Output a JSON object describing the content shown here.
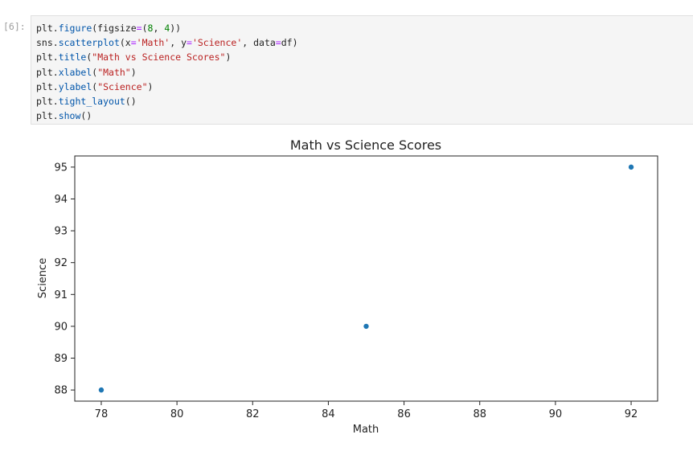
{
  "cell": {
    "prompt": "[6]:",
    "code_lines": [
      [
        {
          "t": "plt.",
          "k": "plain"
        },
        {
          "t": "figure",
          "k": "fn"
        },
        {
          "t": "(figsize",
          "k": "plain"
        },
        {
          "t": "=",
          "k": "op"
        },
        {
          "t": "(",
          "k": "plain"
        },
        {
          "t": "8",
          "k": "num"
        },
        {
          "t": ", ",
          "k": "plain"
        },
        {
          "t": "4",
          "k": "num"
        },
        {
          "t": "))",
          "k": "plain"
        }
      ],
      [
        {
          "t": "sns.",
          "k": "plain"
        },
        {
          "t": "scatterplot",
          "k": "fn"
        },
        {
          "t": "(x",
          "k": "plain"
        },
        {
          "t": "=",
          "k": "op"
        },
        {
          "t": "'Math'",
          "k": "str"
        },
        {
          "t": ", y",
          "k": "plain"
        },
        {
          "t": "=",
          "k": "op"
        },
        {
          "t": "'Science'",
          "k": "str"
        },
        {
          "t": ", data",
          "k": "plain"
        },
        {
          "t": "=",
          "k": "op"
        },
        {
          "t": "df)",
          "k": "plain"
        }
      ],
      [
        {
          "t": "plt.",
          "k": "plain"
        },
        {
          "t": "title",
          "k": "fn"
        },
        {
          "t": "(",
          "k": "plain"
        },
        {
          "t": "\"Math vs Science Scores\"",
          "k": "str"
        },
        {
          "t": ")",
          "k": "plain"
        }
      ],
      [
        {
          "t": "plt.",
          "k": "plain"
        },
        {
          "t": "xlabel",
          "k": "fn"
        },
        {
          "t": "(",
          "k": "plain"
        },
        {
          "t": "\"Math\"",
          "k": "str"
        },
        {
          "t": ")",
          "k": "plain"
        }
      ],
      [
        {
          "t": "plt.",
          "k": "plain"
        },
        {
          "t": "ylabel",
          "k": "fn"
        },
        {
          "t": "(",
          "k": "plain"
        },
        {
          "t": "\"Science\"",
          "k": "str"
        },
        {
          "t": ")",
          "k": "plain"
        }
      ],
      [
        {
          "t": "plt.",
          "k": "plain"
        },
        {
          "t": "tight_layout",
          "k": "fn"
        },
        {
          "t": "()",
          "k": "plain"
        }
      ],
      [
        {
          "t": "plt.",
          "k": "plain"
        },
        {
          "t": "show",
          "k": "fn"
        },
        {
          "t": "()",
          "k": "plain"
        }
      ]
    ]
  },
  "chart_data": {
    "type": "scatter",
    "title": "Math vs Science Scores",
    "xlabel": "Math",
    "ylabel": "Science",
    "xlim": [
      77.3,
      92.7
    ],
    "ylim": [
      87.65,
      95.35
    ],
    "xticks": [
      78,
      80,
      82,
      84,
      86,
      88,
      90,
      92
    ],
    "yticks": [
      88,
      89,
      90,
      91,
      92,
      93,
      94,
      95
    ],
    "grid": false,
    "marker_color": "#1f77b4",
    "points": [
      {
        "x": 78,
        "y": 88
      },
      {
        "x": 85,
        "y": 90
      },
      {
        "x": 92,
        "y": 95
      }
    ]
  }
}
